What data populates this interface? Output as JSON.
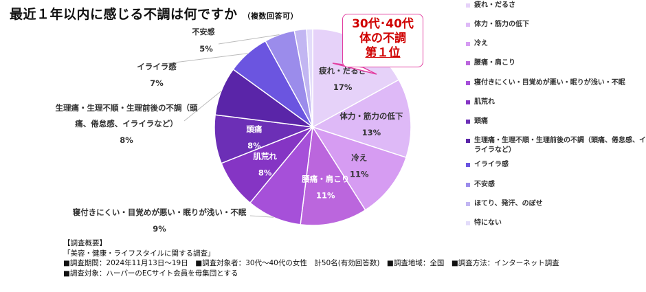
{
  "header": {
    "title": "最近１年以内に感じる不調は何ですか",
    "note": "（複数回答可）"
  },
  "callout": {
    "line1": "30代･40代",
    "line2": "体の不調",
    "line3": "第１位"
  },
  "chart_data": {
    "type": "pie",
    "title": "最近１年以内に感じる不調は何ですか（複数回答可）",
    "unit": "%",
    "slices": [
      {
        "label": "疲れ・だるさ",
        "value": 17,
        "value_label": "17%",
        "color": "#e6d2f9"
      },
      {
        "label": "体力・筋力の低下",
        "value": 13,
        "value_label": "13%",
        "color": "#deb9f7"
      },
      {
        "label": "冷え",
        "value": 11,
        "value_label": "11%",
        "color": "#d69cf2"
      },
      {
        "label": "腰痛・肩こり",
        "value": 11,
        "value_label": "11%",
        "color": "#bb66dd"
      },
      {
        "label": "寝付きにくい・目覚めが悪い・眠りが浅い・不眠",
        "value": 9,
        "value_label": "9%",
        "color": "#a650d9"
      },
      {
        "label": "肌荒れ",
        "value": 8,
        "value_label": "8%",
        "color": "#8535c4"
      },
      {
        "label": "頭痛",
        "value": 8,
        "value_label": "8%",
        "color": "#6c2fb6"
      },
      {
        "label": "生理痛・生理不順・生理前後の不調（頭痛、倦怠感、イライラなど）",
        "value": 8,
        "value_label": "8%",
        "color": "#5a25a8"
      },
      {
        "label": "イライラ感",
        "value": 7,
        "value_label": "7%",
        "color": "#6b55e0"
      },
      {
        "label": "不安感",
        "value": 5,
        "value_label": "5%",
        "color": "#9b8ceb"
      },
      {
        "label": "ほてり、発汗、のぼせ",
        "value": 2,
        "value_label": "",
        "color": "#c2b6f2"
      },
      {
        "label": "特にない",
        "value": 1,
        "value_label": "",
        "color": "#e3dcfa"
      }
    ],
    "legend_position": "right",
    "outside_labels": {
      "fuan": {
        "line1": "不安感",
        "line2": "5%"
      },
      "iraira": {
        "line1": "イライラ感",
        "line2": "7%"
      },
      "seiri": {
        "line1": "生理痛・生理不順・生理前後の不調（頭",
        "line2": "痛、倦怠感、イライラなど）",
        "line3": "8%"
      },
      "nemuri": {
        "line1": "寝付きにくい・目覚めが悪い・眠りが浅い・不眠",
        "line2": "9%"
      }
    },
    "legend": [
      "疲れ・だるさ",
      "体力・筋力の低下",
      "冷え",
      "腰痛・肩こり",
      "寝付きにくい・目覚めが悪い・眠りが浅い・不眠",
      "肌荒れ",
      "頭痛",
      "生理痛・生理不順・生理前後の不調（頭痛、倦怠感、イライラなど）",
      "イライラ感",
      "不安感",
      "ほてり、発汗、のぼせ",
      "特にない"
    ]
  },
  "survey": {
    "heading": "【調査概要】",
    "line1": "「美容・健康・ライフスタイルに関する調査」",
    "line2": "■調査期間：2024年11月13日～19日　■調査対象者：30代～40代の女性　計50名(有効回答数)　■調査地域：全国　■調査方法：インターネット調査",
    "line3": "■調査対象：ハーパーのECサイト会員を母集団とする"
  }
}
